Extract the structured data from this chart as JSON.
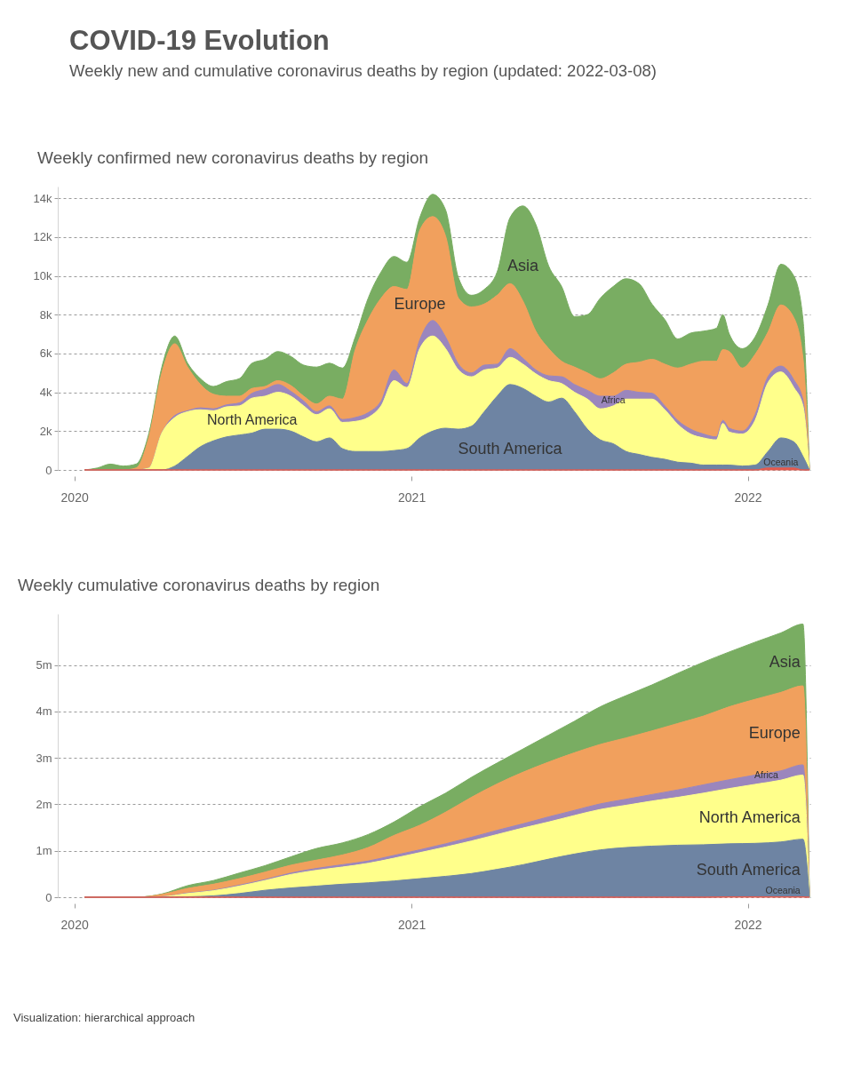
{
  "chart_data": [
    {
      "type": "other",
      "title": "COVID-19 Evolution",
      "subtitle": "Weekly new and cumulative coronavirus deaths by region (updated: 2022-03-08)"
    },
    {
      "type": "area",
      "stacked": true,
      "title": "Weekly confirmed new coronavirus deaths by region",
      "grid": "y",
      "xlim": [
        "2019-12-14",
        "2022-03-10"
      ],
      "xticks": [
        "2020",
        "2021",
        "2022"
      ],
      "ylim": [
        0,
        14600
      ],
      "yticks": [
        0,
        {
          "value": 2000,
          "label": "2k"
        },
        {
          "value": 4000,
          "label": "4k"
        },
        {
          "value": 6000,
          "label": "6k"
        },
        {
          "value": 8000,
          "label": "8k"
        },
        {
          "value": 10000,
          "label": "10k"
        },
        {
          "value": 12000,
          "label": "12k"
        },
        {
          "value": 14000,
          "label": "14k"
        }
      ],
      "x": [
        "2020-01-12",
        "2020-01-26",
        "2020-02-09",
        "2020-02-23",
        "2020-03-08",
        "2020-03-22",
        "2020-04-05",
        "2020-04-19",
        "2020-05-03",
        "2020-05-17",
        "2020-05-31",
        "2020-06-14",
        "2020-06-28",
        "2020-07-12",
        "2020-07-26",
        "2020-08-09",
        "2020-08-23",
        "2020-09-06",
        "2020-09-20",
        "2020-10-04",
        "2020-10-18",
        "2020-11-01",
        "2020-11-15",
        "2020-11-29",
        "2020-12-13",
        "2020-12-27",
        "2021-01-10",
        "2021-01-24",
        "2021-02-07",
        "2021-02-21",
        "2021-03-07",
        "2021-03-21",
        "2021-04-04",
        "2021-04-18",
        "2021-05-02",
        "2021-05-16",
        "2021-05-30",
        "2021-06-13",
        "2021-06-27",
        "2021-07-11",
        "2021-07-25",
        "2021-08-08",
        "2021-08-22",
        "2021-09-05",
        "2021-09-19",
        "2021-10-03",
        "2021-10-17",
        "2021-10-31",
        "2021-11-14",
        "2021-11-28",
        "2021-12-05",
        "2021-12-12",
        "2021-12-26",
        "2022-01-09",
        "2022-01-23",
        "2022-02-06",
        "2022-02-20",
        "2022-03-02",
        "2022-03-09"
      ],
      "series": [
        {
          "name": "Oceania",
          "color": "#e35b4f",
          "values": [
            0,
            0,
            0,
            0,
            0,
            0,
            0,
            0,
            0,
            0,
            0,
            0,
            0,
            0,
            0,
            0,
            0,
            0,
            0,
            0,
            0,
            0,
            0,
            0,
            0,
            0,
            0,
            0,
            0,
            0,
            0,
            0,
            0,
            0,
            0,
            0,
            0,
            0,
            0,
            0,
            0,
            0,
            0,
            0,
            0,
            0,
            0,
            0,
            0,
            0,
            0,
            0,
            0,
            0,
            100,
            100,
            100,
            0,
            0
          ]
        },
        {
          "name": "South America",
          "color": "#6e84a3",
          "values": [
            0,
            0,
            0,
            0,
            0,
            0,
            0,
            200,
            700,
            1200,
            1500,
            1700,
            1800,
            1900,
            2100,
            2100,
            2000,
            1700,
            1450,
            1650,
            1100,
            950,
            950,
            950,
            1000,
            1100,
            1650,
            2000,
            2150,
            2100,
            2250,
            3000,
            3800,
            4400,
            4200,
            3800,
            3500,
            3700,
            3000,
            2100,
            1550,
            1350,
            950,
            800,
            650,
            550,
            400,
            350,
            250,
            250,
            250,
            250,
            200,
            250,
            850,
            1550,
            1350,
            700,
            0
          ]
        },
        {
          "name": "North America",
          "color": "#ffff8b",
          "values": [
            0,
            0,
            0,
            0,
            0,
            100,
            1900,
            2500,
            2300,
            1900,
            1550,
            1550,
            1500,
            1800,
            1700,
            1900,
            1800,
            1600,
            1400,
            1500,
            1350,
            1550,
            1750,
            2350,
            3600,
            3150,
            4600,
            4900,
            4100,
            3050,
            2550,
            2150,
            1450,
            1400,
            1250,
            1150,
            1100,
            750,
            1000,
            1550,
            1600,
            1950,
            2700,
            2850,
            3000,
            2550,
            1950,
            1500,
            1400,
            1300,
            2150,
            1700,
            1650,
            2300,
            3550,
            3400,
            2800,
            2600,
            0
          ]
        },
        {
          "name": "Africa",
          "color": "#9b86bd",
          "values": [
            0,
            0,
            0,
            0,
            0,
            0,
            0,
            100,
            50,
            100,
            100,
            100,
            150,
            250,
            350,
            400,
            250,
            250,
            150,
            150,
            150,
            200,
            250,
            250,
            550,
            200,
            450,
            800,
            600,
            300,
            200,
            250,
            200,
            450,
            300,
            200,
            250,
            350,
            400,
            450,
            650,
            500,
            450,
            350,
            300,
            200,
            200,
            250,
            200,
            150,
            150,
            200,
            150,
            300,
            300,
            300,
            400,
            300,
            0
          ]
        },
        {
          "name": "Europe",
          "color": "#f1a05d",
          "values": [
            0,
            0,
            0,
            0,
            100,
            1600,
            3100,
            3700,
            2250,
            1200,
            750,
            450,
            350,
            250,
            150,
            200,
            300,
            250,
            400,
            500,
            1050,
            3500,
            4800,
            5300,
            4300,
            4850,
            5650,
            5350,
            5200,
            3400,
            3400,
            3150,
            3550,
            3350,
            2950,
            2000,
            1400,
            800,
            900,
            900,
            900,
            1200,
            1350,
            1550,
            1750,
            2150,
            2700,
            3350,
            3750,
            3900,
            3650,
            3950,
            3250,
            3100,
            2300,
            3150,
            3200,
            2150,
            0
          ]
        },
        {
          "name": "Asia",
          "color": "#79ad62",
          "values": [
            0,
            100,
            300,
            200,
            200,
            200,
            300,
            400,
            200,
            300,
            400,
            750,
            900,
            1300,
            1400,
            1500,
            1500,
            1600,
            1900,
            1700,
            1600,
            650,
            1100,
            1350,
            1550,
            1400,
            650,
            1150,
            1350,
            1050,
            600,
            750,
            1200,
            3400,
            4900,
            5500,
            4250,
            3850,
            2600,
            3000,
            4150,
            4450,
            4400,
            4050,
            2850,
            2300,
            1500,
            1600,
            1550,
            1700,
            1800,
            900,
            1000,
            900,
            1400,
            2100,
            2150,
            2000,
            0
          ]
        }
      ]
    },
    {
      "type": "area",
      "stacked": true,
      "title": "Weekly cumulative coronavirus deaths by region",
      "grid": "y",
      "xlim": [
        "2019-12-14",
        "2022-03-10"
      ],
      "xticks": [
        "2020",
        "2021",
        "2022"
      ],
      "ylim": [
        0,
        6100000
      ],
      "yticks": [
        0,
        {
          "value": 1000000,
          "label": "1m"
        },
        {
          "value": 2000000,
          "label": "2m"
        },
        {
          "value": 3000000,
          "label": "3m"
        },
        {
          "value": 4000000,
          "label": "4m"
        },
        {
          "value": 5000000,
          "label": "5m"
        }
      ],
      "x": [
        "2020-01-12",
        "2020-02-09",
        "2020-03-08",
        "2020-04-05",
        "2020-05-03",
        "2020-05-31",
        "2020-06-28",
        "2020-07-26",
        "2020-08-23",
        "2020-09-20",
        "2020-10-18",
        "2020-11-15",
        "2020-12-13",
        "2021-01-10",
        "2021-02-07",
        "2021-03-07",
        "2021-04-04",
        "2021-05-02",
        "2021-05-30",
        "2021-06-27",
        "2021-07-25",
        "2021-08-22",
        "2021-09-19",
        "2021-10-17",
        "2021-11-14",
        "2021-12-12",
        "2022-01-09",
        "2022-02-06",
        "2022-03-02",
        "2022-03-09"
      ],
      "series": [
        {
          "name": "Oceania",
          "color": "#e35b4f",
          "values": [
            0,
            0,
            0,
            0,
            0,
            0,
            0,
            0,
            0,
            0,
            0,
            0,
            0,
            0,
            0,
            0,
            0,
            0,
            0,
            0,
            0,
            0,
            0,
            0,
            0,
            10000,
            10000,
            10000,
            10000,
            0
          ]
        },
        {
          "name": "South America",
          "color": "#6e84a3",
          "values": [
            0,
            0,
            0,
            0,
            10000,
            30000,
            80000,
            150000,
            200000,
            240000,
            280000,
            310000,
            350000,
            400000,
            450000,
            510000,
            600000,
            700000,
            820000,
            930000,
            1020000,
            1070000,
            1100000,
            1120000,
            1130000,
            1140000,
            1150000,
            1180000,
            1240000,
            0
          ]
        },
        {
          "name": "North America",
          "color": "#ffff8b",
          "values": [
            0,
            0,
            0,
            10000,
            70000,
            110000,
            160000,
            210000,
            290000,
            340000,
            370000,
            420000,
            490000,
            560000,
            630000,
            700000,
            750000,
            790000,
            800000,
            830000,
            870000,
            910000,
            970000,
            1030000,
            1110000,
            1190000,
            1270000,
            1330000,
            1380000,
            0
          ]
        },
        {
          "name": "Africa",
          "color": "#9b86bd",
          "values": [
            0,
            0,
            0,
            0,
            10000,
            10000,
            20000,
            20000,
            30000,
            40000,
            50000,
            50000,
            60000,
            60000,
            70000,
            80000,
            90000,
            90000,
            110000,
            110000,
            120000,
            130000,
            140000,
            160000,
            180000,
            190000,
            200000,
            200000,
            220000,
            0
          ]
        },
        {
          "name": "Europe",
          "color": "#f1a05d",
          "values": [
            0,
            0,
            0,
            50000,
            100000,
            130000,
            140000,
            160000,
            170000,
            180000,
            210000,
            290000,
            430000,
            530000,
            680000,
            860000,
            1000000,
            1110000,
            1180000,
            1240000,
            1280000,
            1320000,
            1370000,
            1430000,
            1480000,
            1570000,
            1630000,
            1690000,
            1700000,
            0
          ]
        },
        {
          "name": "Asia",
          "color": "#79ad62",
          "values": [
            0,
            0,
            0,
            10000,
            60000,
            80000,
            120000,
            140000,
            180000,
            250000,
            260000,
            280000,
            290000,
            400000,
            410000,
            430000,
            450000,
            500000,
            580000,
            680000,
            810000,
            910000,
            990000,
            1080000,
            1160000,
            1180000,
            1230000,
            1280000,
            1330000,
            0
          ]
        }
      ],
      "annotations": [
        "Visualization: hierarchical approach"
      ]
    }
  ]
}
